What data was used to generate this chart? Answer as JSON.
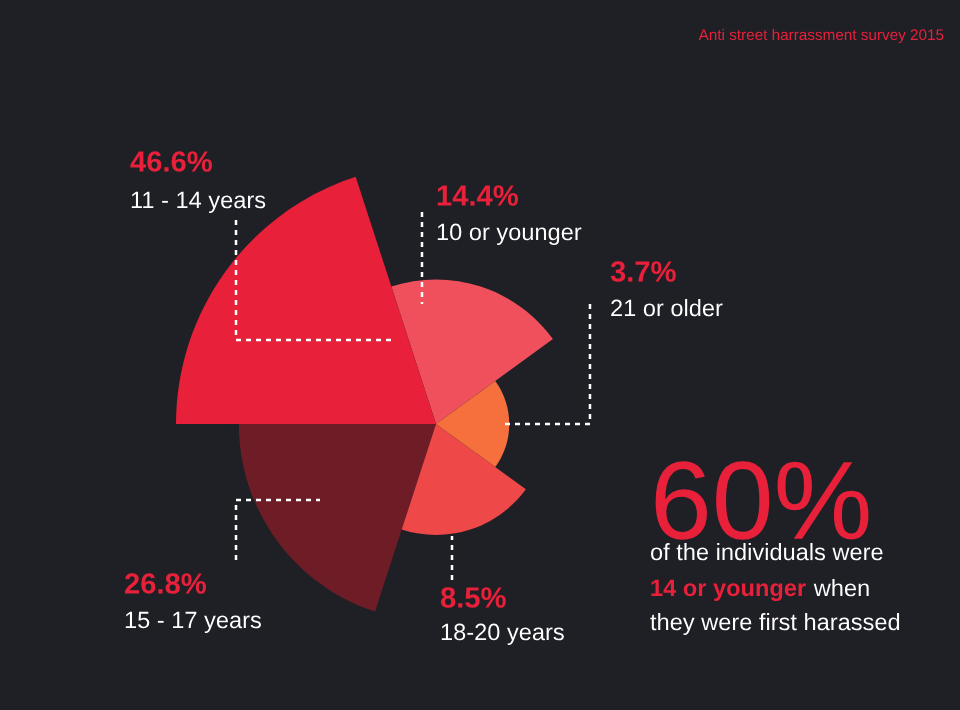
{
  "chart_data": {
    "type": "other",
    "title": "Anti street harrassment survey 2015",
    "categories": [
      "10 or younger",
      "11 - 14 years",
      "15 - 17 years",
      "18-20 years",
      "21 or older"
    ],
    "values": [
      14.4,
      46.6,
      26.8,
      8.5,
      3.7
    ],
    "value_labels": [
      "14.4%",
      "46.6%",
      "26.8%",
      "8.5%",
      "3.7%"
    ],
    "colors": [
      "#f0505c",
      "#e8203a",
      "#6e1d26",
      "#ee4848",
      "#f5703c"
    ],
    "annotations": [
      "60%",
      "of the individuals were",
      "14 or younger",
      "when",
      "they were first harassed"
    ]
  }
}
